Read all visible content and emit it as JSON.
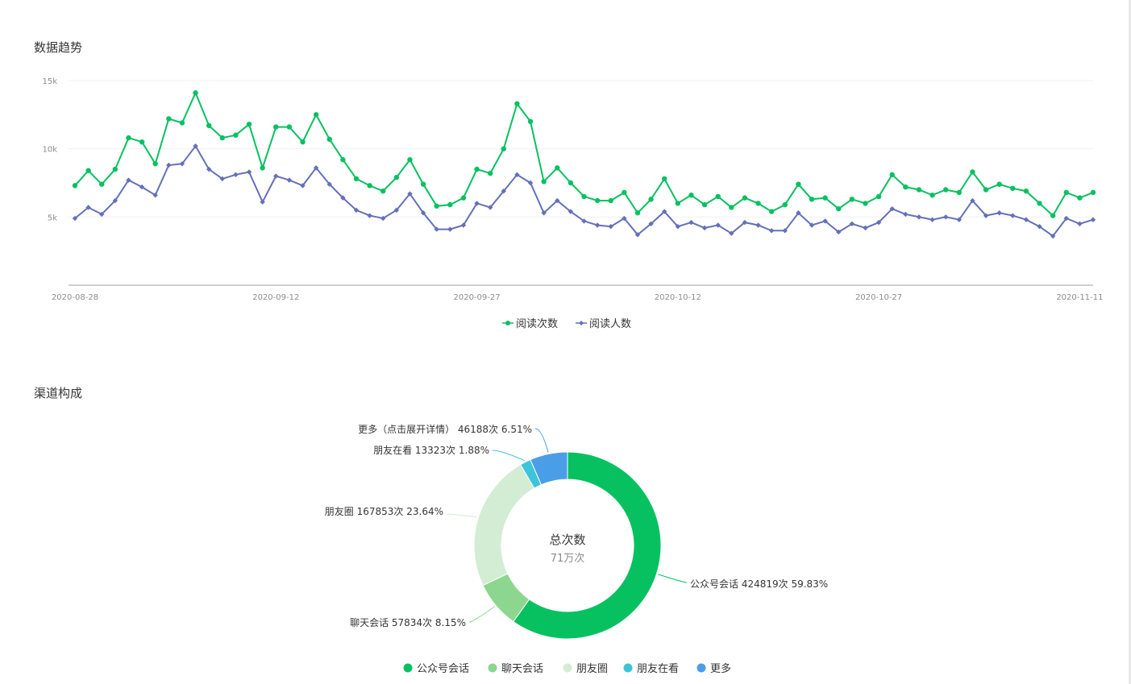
{
  "sections": {
    "trend_title": "数据趋势",
    "channel_title": "渠道构成"
  },
  "chart_data": [
    {
      "type": "line",
      "y_ticks": [
        "15k",
        "10k",
        "5k"
      ],
      "y_tick_values": [
        15000,
        10000,
        5000
      ],
      "ylim": [
        0,
        15000
      ],
      "x_tick_labels": [
        "2020-08-28",
        "2020-09-12",
        "2020-09-27",
        "2020-10-12",
        "2020-10-27",
        "2020-11-11"
      ],
      "x_start": "2020-08-28",
      "x_end": "2020-11-11",
      "grid": true,
      "legend_position": "bottom-center",
      "series": [
        {
          "name": "阅读次数",
          "color": "#07c160",
          "marker": "circle",
          "values": [
            7300,
            8400,
            7400,
            8500,
            10800,
            10500,
            8900,
            12200,
            11900,
            14100,
            11700,
            10800,
            11000,
            11800,
            8600,
            11600,
            11600,
            10500,
            12500,
            10700,
            9200,
            7800,
            7300,
            6900,
            7900,
            9200,
            7400,
            5800,
            5900,
            6400,
            8500,
            8200,
            10000,
            13300,
            12000,
            7600,
            8600,
            7500,
            6500,
            6200,
            6200,
            6800,
            5300,
            6300,
            7800,
            6000,
            6600,
            5900,
            6500,
            5700,
            6400,
            6000,
            5400,
            5900,
            7400,
            6300,
            6400,
            5600,
            6300,
            6000,
            6500,
            8100,
            7200,
            7000,
            6600,
            7000,
            6800,
            8300,
            7000,
            7400,
            7100,
            6900,
            6000,
            5100,
            6800,
            6400,
            6800
          ]
        },
        {
          "name": "阅读人数",
          "color": "#6470b8",
          "marker": "diamond",
          "values": [
            4900,
            5700,
            5200,
            6200,
            7700,
            7200,
            6600,
            8800,
            8900,
            10200,
            8500,
            7800,
            8100,
            8300,
            6100,
            8000,
            7700,
            7300,
            8600,
            7400,
            6400,
            5500,
            5100,
            4900,
            5500,
            6700,
            5300,
            4100,
            4100,
            4400,
            6000,
            5700,
            6900,
            8100,
            7500,
            5300,
            6200,
            5400,
            4700,
            4400,
            4300,
            4900,
            3700,
            4500,
            5400,
            4300,
            4600,
            4200,
            4400,
            3800,
            4600,
            4400,
            4000,
            4000,
            5300,
            4400,
            4700,
            3900,
            4500,
            4200,
            4600,
            5600,
            5200,
            5000,
            4800,
            5000,
            4800,
            6200,
            5100,
            5300,
            5100,
            4800,
            4300,
            3600,
            4900,
            4500,
            4800
          ]
        }
      ]
    },
    {
      "type": "pie",
      "donut": true,
      "center_title": "总次数",
      "center_value": "71万次",
      "legend_position": "bottom-center",
      "slices": [
        {
          "name": "公众号会话",
          "value": 424819,
          "percent": 59.83,
          "color": "#07c160",
          "label": "公众号会话 424819次 59.83%"
        },
        {
          "name": "聊天会话",
          "value": 57834,
          "percent": 8.15,
          "color": "#8dd68f",
          "label": "聊天会话 57834次 8.15%"
        },
        {
          "name": "朋友圈",
          "value": 167853,
          "percent": 23.64,
          "color": "#d3edd4",
          "label": "朋友圈 167853次 23.64%"
        },
        {
          "name": "朋友在看",
          "value": 13323,
          "percent": 1.88,
          "color": "#3cc5da",
          "label": "朋友在看 13323次 1.88%"
        },
        {
          "name": "更多",
          "value": 46188,
          "percent": 6.51,
          "color": "#4a9ee8",
          "label": "更多（点击展开详情） 46188次 6.51%"
        }
      ]
    }
  ]
}
